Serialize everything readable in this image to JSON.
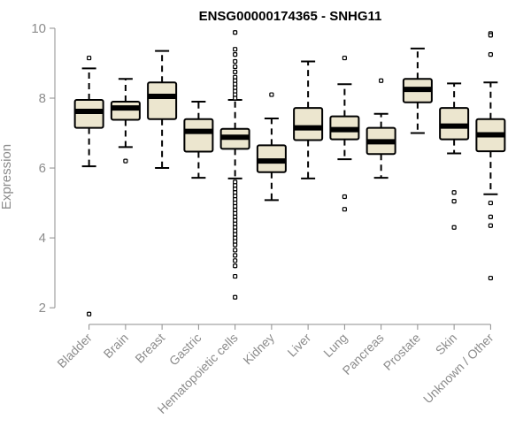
{
  "chart_data": {
    "type": "box",
    "title": "ENSG00000174365 - SNHG11",
    "xlabel": "",
    "ylabel": "Expression",
    "ylim": [
      1.7,
      10.05
    ],
    "yticks": [
      2,
      4,
      6,
      8,
      10
    ],
    "grid": false,
    "legend": "none",
    "box_fill": "#ece6cf",
    "box_stroke": "#000000",
    "median_color": "#000000",
    "categories": [
      "Bladder",
      "Brain",
      "Breast",
      "Gastric",
      "Hematopoietic cells",
      "Kidney",
      "Liver",
      "Lung",
      "Pancreas",
      "Prostate",
      "Skin",
      "Unknown / Other"
    ],
    "boxes": [
      {
        "min": 6.05,
        "q1": 7.15,
        "median": 7.62,
        "q3": 7.95,
        "max": 8.85,
        "outliers": [
          9.15,
          1.82
        ]
      },
      {
        "min": 6.6,
        "q1": 7.38,
        "median": 7.72,
        "q3": 7.9,
        "max": 8.55,
        "outliers": [
          6.2
        ]
      },
      {
        "min": 6.0,
        "q1": 7.4,
        "median": 8.05,
        "q3": 8.45,
        "max": 9.35,
        "outliers": []
      },
      {
        "min": 5.72,
        "q1": 6.47,
        "median": 7.05,
        "q3": 7.4,
        "max": 7.9,
        "outliers": []
      },
      {
        "min": 5.7,
        "q1": 6.55,
        "median": 6.88,
        "q3": 7.12,
        "max": 7.95,
        "outliers": [
          9.88,
          9.4,
          9.25,
          9.05,
          8.9,
          8.75,
          8.6,
          8.5,
          8.4,
          8.3,
          8.2,
          8.1,
          8.0,
          5.6,
          5.5,
          5.4,
          5.3,
          5.2,
          5.1,
          5.0,
          4.9,
          4.8,
          4.7,
          4.6,
          4.5,
          4.4,
          4.3,
          4.2,
          4.1,
          4.0,
          3.9,
          3.8,
          3.65,
          3.5,
          3.35,
          3.2,
          2.9,
          2.3
        ]
      },
      {
        "min": 5.08,
        "q1": 5.88,
        "median": 6.2,
        "q3": 6.65,
        "max": 7.42,
        "outliers": [
          8.1
        ]
      },
      {
        "min": 5.7,
        "q1": 6.8,
        "median": 7.15,
        "q3": 7.72,
        "max": 9.05,
        "outliers": []
      },
      {
        "min": 6.25,
        "q1": 6.82,
        "median": 7.1,
        "q3": 7.48,
        "max": 8.4,
        "outliers": [
          9.15,
          5.18,
          4.82
        ]
      },
      {
        "min": 5.72,
        "q1": 6.4,
        "median": 6.75,
        "q3": 7.15,
        "max": 7.55,
        "outliers": [
          8.5
        ]
      },
      {
        "min": 7.0,
        "q1": 7.88,
        "median": 8.25,
        "q3": 8.55,
        "max": 9.42,
        "outliers": []
      },
      {
        "min": 6.42,
        "q1": 6.82,
        "median": 7.2,
        "q3": 7.72,
        "max": 8.42,
        "outliers": [
          5.3,
          5.05,
          4.3
        ]
      },
      {
        "min": 5.25,
        "q1": 6.48,
        "median": 6.95,
        "q3": 7.4,
        "max": 8.45,
        "outliers": [
          9.85,
          9.8,
          9.25,
          5.0,
          4.6,
          4.35,
          2.85
        ]
      }
    ]
  }
}
